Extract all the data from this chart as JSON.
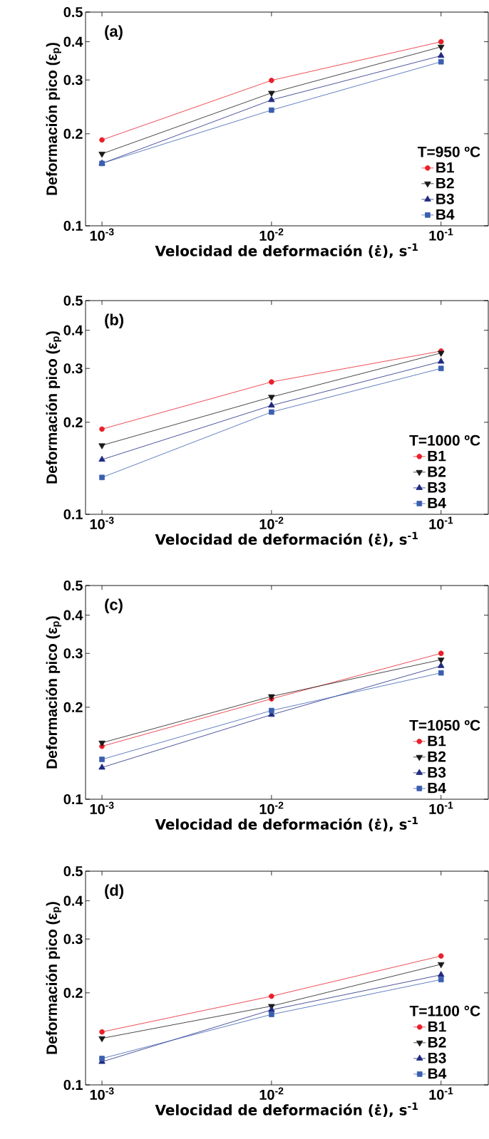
{
  "chart_data": [
    {
      "type": "line",
      "xlabel": "Velocidad de deformación  (ε̇), s$^{-1}$",
      "ylabel": "Deformación pico (ε$_{p}$)",
      "legend_title": "T=950 ºC",
      "annotations": [
        "(a)"
      ],
      "log": "xy",
      "legend": "bottom right",
      "x": [
        0.001,
        0.01,
        0.1
      ],
      "xlim": [
        0.0008,
        0.19
      ],
      "ylim": [
        0.1,
        0.5
      ],
      "xticks": [
        {
          "value": 0.001,
          "label": "10$^{-3}$"
        },
        {
          "value": 0.01,
          "label": "10$^{-2}$"
        },
        {
          "value": 0.1,
          "label": "10$^{-1}$"
        }
      ],
      "yticks": [
        0.1,
        0.2,
        0.3,
        0.4,
        0.5
      ],
      "series": [
        {
          "name": "B1",
          "color": "#e8202a",
          "marker": "circle",
          "values": [
            0.191,
            0.299,
            0.4
          ]
        },
        {
          "name": "B2",
          "color": "#1a1a1a",
          "marker": "triangle-down",
          "values": [
            0.172,
            0.272,
            0.385
          ]
        },
        {
          "name": "B3",
          "color": "#1f2a80",
          "marker": "triangle",
          "values": [
            0.16,
            0.258,
            0.36
          ]
        },
        {
          "name": "B4",
          "color": "#3a5fb0",
          "marker": "square",
          "values": [
            0.16,
            0.239,
            0.344
          ]
        }
      ]
    },
    {
      "type": "line",
      "xlabel": "Velocidad de deformación  (ε̇), s$^{-1}$",
      "ylabel": "Deformación pico (ε$_{p}$)",
      "legend_title": "T=1000 ºC",
      "annotations": [
        "(b)"
      ],
      "log": "xy",
      "legend": "bottom right",
      "x": [
        0.001,
        0.01,
        0.1
      ],
      "xlim": [
        0.0008,
        0.19
      ],
      "ylim": [
        0.1,
        0.5
      ],
      "xticks": [
        {
          "value": 0.001,
          "label": "10$^{-3}$"
        },
        {
          "value": 0.01,
          "label": "10$^{-2}$"
        },
        {
          "value": 0.1,
          "label": "10$^{-1}$"
        }
      ],
      "yticks": [
        0.1,
        0.2,
        0.3,
        0.4,
        0.5
      ],
      "series": [
        {
          "name": "B1",
          "color": "#e8202a",
          "marker": "circle",
          "values": [
            0.19,
            0.271,
            0.342
          ]
        },
        {
          "name": "B2",
          "color": "#1a1a1a",
          "marker": "triangle-down",
          "values": [
            0.168,
            0.242,
            0.337
          ]
        },
        {
          "name": "B3",
          "color": "#1f2a80",
          "marker": "triangle",
          "values": [
            0.151,
            0.227,
            0.316
          ]
        },
        {
          "name": "B4",
          "color": "#3a5fb0",
          "marker": "square",
          "values": [
            0.132,
            0.216,
            0.3
          ]
        }
      ]
    },
    {
      "type": "line",
      "xlabel": "Velocidad de deformación  (ε̇), s$^{-1}$",
      "ylabel": "Deformación pico (ε$_{p}$)",
      "legend_title": "T=1050 ºC",
      "annotations": [
        "(c)"
      ],
      "log": "xy",
      "legend": "bottom right",
      "x": [
        0.001,
        0.01,
        0.1
      ],
      "xlim": [
        0.0008,
        0.19
      ],
      "ylim": [
        0.1,
        0.5
      ],
      "xticks": [
        {
          "value": 0.001,
          "label": "10$^{-3}$"
        },
        {
          "value": 0.01,
          "label": "10$^{-2}$"
        },
        {
          "value": 0.1,
          "label": "10$^{-1}$"
        }
      ],
      "yticks": [
        0.1,
        0.2,
        0.3,
        0.4,
        0.5
      ],
      "series": [
        {
          "name": "B1",
          "color": "#e8202a",
          "marker": "circle",
          "values": [
            0.149,
            0.213,
            0.3
          ]
        },
        {
          "name": "B2",
          "color": "#1a1a1a",
          "marker": "triangle-down",
          "values": [
            0.153,
            0.217,
            0.286
          ]
        },
        {
          "name": "B3",
          "color": "#1f2a80",
          "marker": "triangle",
          "values": [
            0.127,
            0.189,
            0.273
          ]
        },
        {
          "name": "B4",
          "color": "#3a5fb0",
          "marker": "square",
          "values": [
            0.135,
            0.195,
            0.259
          ]
        }
      ]
    },
    {
      "type": "line",
      "xlabel": "Velocidad de deformación  (ε̇), s$^{-1}$",
      "ylabel": "Deformación pico (ε$_{p}$)",
      "legend_title": "T=1100 °C",
      "annotations": [
        "(d)"
      ],
      "log": "xy",
      "legend": "bottom right",
      "x": [
        0.001,
        0.01,
        0.1
      ],
      "xlim": [
        0.0008,
        0.19
      ],
      "ylim": [
        0.1,
        0.5
      ],
      "xticks": [
        {
          "value": 0.001,
          "label": "10$^{-3}$"
        },
        {
          "value": 0.01,
          "label": "10$^{-2}$"
        },
        {
          "value": 0.1,
          "label": "10$^{-1}$"
        }
      ],
      "yticks": [
        0.1,
        0.2,
        0.3,
        0.4,
        0.5
      ],
      "series": [
        {
          "name": "B1",
          "color": "#e8202a",
          "marker": "circle",
          "values": [
            0.149,
            0.195,
            0.264
          ]
        },
        {
          "name": "B2",
          "color": "#1a1a1a",
          "marker": "triangle-down",
          "values": [
            0.142,
            0.181,
            0.248
          ]
        },
        {
          "name": "B3",
          "color": "#1f2a80",
          "marker": "triangle",
          "values": [
            0.119,
            0.176,
            0.229
          ]
        },
        {
          "name": "B4",
          "color": "#3a5fb0",
          "marker": "square",
          "values": [
            0.122,
            0.17,
            0.221
          ]
        }
      ]
    }
  ]
}
